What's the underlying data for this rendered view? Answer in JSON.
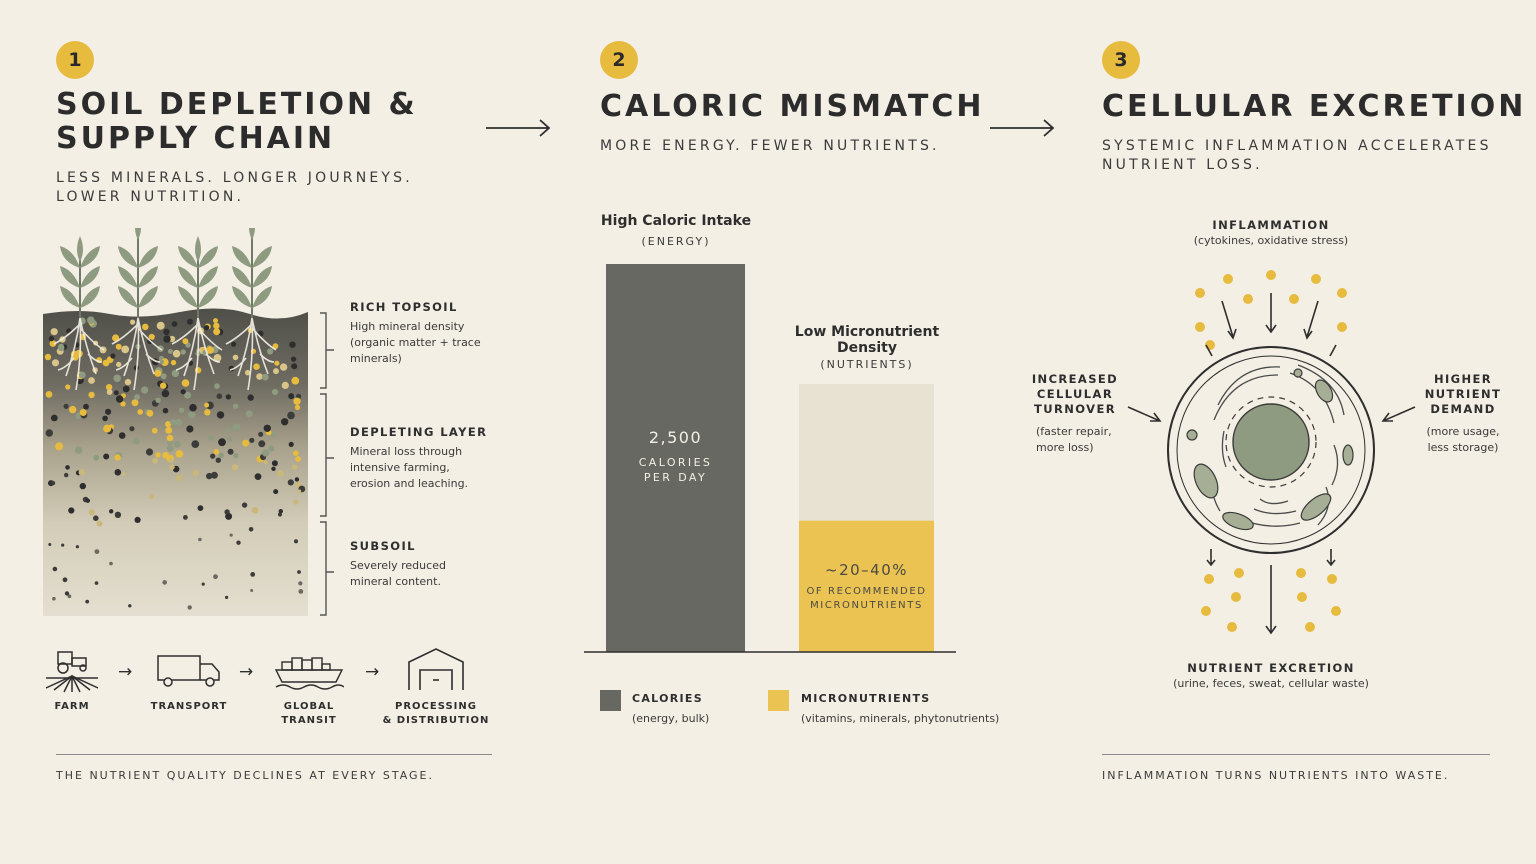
{
  "colors": {
    "background": "#f3efe4",
    "accent_yellow": "#e6bb3e",
    "calorie_bar": "#676862",
    "micronutrient_bar": "#ebc352",
    "micronutrient_track": "#e8e2d2",
    "leaf_green": "#8f9b80",
    "nucleus": "#8f9b80"
  },
  "panel1": {
    "number": "1",
    "title_line1": "SOIL DEPLETION &",
    "title_line2": "SUPPLY CHAIN",
    "subtitle_line1": "LESS MINERALS. LONGER JOURNEYS.",
    "subtitle_line2": "LOWER NUTRITION.",
    "layers": [
      {
        "title": "RICH TOPSOIL",
        "body": [
          "High mineral density",
          "(organic matter + trace",
          "minerals)"
        ]
      },
      {
        "title": "DEPLETING LAYER",
        "body": [
          "Mineral loss through",
          "intensive farming,",
          "erosion and leaching."
        ]
      },
      {
        "title": "SUBSOIL",
        "body": [
          "Severely reduced",
          "mineral content."
        ]
      }
    ],
    "chain": [
      {
        "label": "FARM",
        "icon": "tractor-icon"
      },
      {
        "label": "TRANSPORT",
        "icon": "truck-icon"
      },
      {
        "label": "GLOBAL TRANSIT",
        "icon": "cargo-ship-icon"
      },
      {
        "label_line1": "PROCESSING",
        "label_line2": "& DISTRIBUTION",
        "icon": "warehouse-icon"
      }
    ],
    "chain_arrow": "→",
    "footer": "THE NUTRIENT QUALITY DECLINES AT EVERY STAGE."
  },
  "panel2": {
    "number": "2",
    "title": "CALORIC MISMATCH",
    "subtitle": "MORE ENERGY. FEWER NUTRIENTS.",
    "bar1_title": "High Caloric Intake",
    "bar1_sub": "(ENERGY)",
    "bar1_value": "2,500",
    "bar1_unit_line1": "CALORIES",
    "bar1_unit_line2": "PER DAY",
    "bar2_title_line1": "Low Micronutrient",
    "bar2_title_line2": "Density",
    "bar2_sub": "(NUTRIENTS)",
    "bar2_value": "~20–40%",
    "bar2_unit_line1": "OF RECOMMENDED",
    "bar2_unit_line2": "MICRONUTRIENTS",
    "legend": [
      {
        "title": "CALORIES",
        "body": "(energy, bulk)"
      },
      {
        "title": "MICRONUTRIENTS",
        "body": "(vitamins, minerals, phytonutrients)"
      }
    ]
  },
  "chart_data": {
    "type": "bar",
    "categories": [
      "High Caloric Intake",
      "Low Micronutrient Density"
    ],
    "series": [
      {
        "name": "CALORIES",
        "values": [
          2500,
          null
        ]
      },
      {
        "name": "MICRONUTRIENTS",
        "values": [
          null,
          30
        ]
      }
    ],
    "micronutrient_range_percent": [
      20,
      40
    ],
    "bar2_fill_fraction": 0.49
  },
  "panel3": {
    "number": "3",
    "title": "CELLULAR EXCRETION",
    "subtitle_line1": "SYSTEMIC INFLAMMATION ACCELERATES",
    "subtitle_line2": "NUTRIENT LOSS.",
    "top_title": "INFLAMMATION",
    "top_body": "(cytokines, oxidative stress)",
    "left_title": [
      "INCREASED",
      "CELLULAR",
      "TURNOVER"
    ],
    "left_body": [
      "(faster repair,",
      "more loss)"
    ],
    "right_title": [
      "HIGHER",
      "NUTRIENT",
      "DEMAND"
    ],
    "right_body": [
      "(more usage,",
      "less storage)"
    ],
    "bottom_title": "NUTRIENT EXCRETION",
    "bottom_body": "(urine, feces, sweat, cellular waste)",
    "footer": "INFLAMMATION TURNS NUTRIENTS INTO WASTE."
  },
  "flow_arrow": "⟶"
}
